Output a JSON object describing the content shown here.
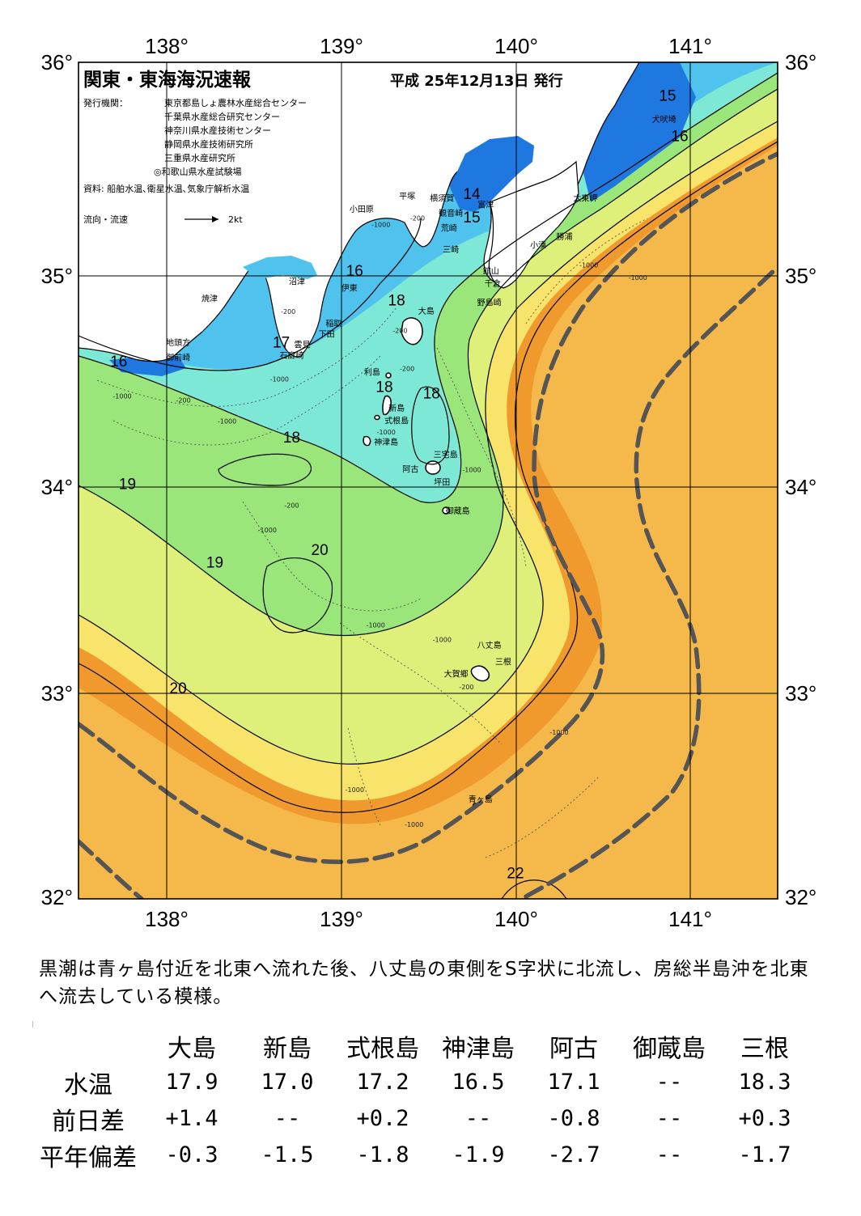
{
  "header": {
    "title": "関東・東海海況速報",
    "date": "平成 25年12月13日 発行",
    "issuer_label": "発行機関：",
    "issuers": [
      "東京都島しょ農林水産総合センター",
      "千葉県水産総合研究センター",
      "神奈川県水産技術センター",
      "静岡県水産技術研究所",
      "三重県水産研究所",
      "◎和歌山県水産試験場"
    ],
    "sources": "資料: 船舶水温､衛星水温､気象庁解析水温",
    "current_legend": "流向・流速",
    "current_scale": "2kt"
  },
  "axes": {
    "lon_labels": [
      "138°",
      "139°",
      "140°",
      "141°"
    ],
    "lat_labels": [
      "36°",
      "35°",
      "34°",
      "33°",
      "32°"
    ]
  },
  "colors": {
    "sea_cold": "#1e78e0",
    "sea_cool": "#4fc3ee",
    "sea_mid": "#7de8d6",
    "sea_green": "#9ae67a",
    "sea_light": "#dff07a",
    "sea_yellow": "#f8e46a",
    "sea_warm": "#f5b84a",
    "sea_hot": "#f09a2e",
    "kuroshio_axis": "#555555",
    "land": "#ffffff"
  },
  "places": [
    {
      "name": "犬吠埼",
      "lon": 140.85,
      "lat": 35.72
    },
    {
      "name": "太東岬",
      "lon": 140.4,
      "lat": 35.35
    },
    {
      "name": "勝浦",
      "lon": 140.28,
      "lat": 35.17
    },
    {
      "name": "小湊",
      "lon": 140.13,
      "lat": 35.13
    },
    {
      "name": "富津",
      "lon": 139.83,
      "lat": 35.32
    },
    {
      "name": "横須賀",
      "lon": 139.58,
      "lat": 35.35
    },
    {
      "name": "平塚",
      "lon": 139.38,
      "lat": 35.36
    },
    {
      "name": "観音崎",
      "lon": 139.63,
      "lat": 35.28
    },
    {
      "name": "荒崎",
      "lon": 139.62,
      "lat": 35.21
    },
    {
      "name": "三崎",
      "lon": 139.63,
      "lat": 35.11
    },
    {
      "name": "小田原",
      "lon": 139.12,
      "lat": 35.3
    },
    {
      "name": "館山",
      "lon": 139.86,
      "lat": 35.01
    },
    {
      "name": "千倉",
      "lon": 139.87,
      "lat": 34.95
    },
    {
      "name": "野島崎",
      "lon": 139.85,
      "lat": 34.86
    },
    {
      "name": "沼津",
      "lon": 138.75,
      "lat": 34.96
    },
    {
      "name": "伊東",
      "lon": 139.05,
      "lat": 34.93
    },
    {
      "name": "焼津",
      "lon": 138.25,
      "lat": 34.88
    },
    {
      "name": "稲取",
      "lon": 138.96,
      "lat": 34.76
    },
    {
      "name": "下田",
      "lon": 138.92,
      "lat": 34.71
    },
    {
      "name": "雲見",
      "lon": 138.78,
      "lat": 34.66
    },
    {
      "name": "石廊崎",
      "lon": 138.72,
      "lat": 34.61
    },
    {
      "name": "大島",
      "lon": 139.49,
      "lat": 34.82
    },
    {
      "name": "地頭方",
      "lon": 138.07,
      "lat": 34.67
    },
    {
      "name": "御前崎",
      "lon": 138.07,
      "lat": 34.6
    },
    {
      "name": "利島",
      "lon": 139.18,
      "lat": 34.53
    },
    {
      "name": "新島",
      "lon": 139.32,
      "lat": 34.36
    },
    {
      "name": "式根島",
      "lon": 139.32,
      "lat": 34.3
    },
    {
      "name": "神津島",
      "lon": 139.26,
      "lat": 34.2
    },
    {
      "name": "三宅島",
      "lon": 139.6,
      "lat": 34.14
    },
    {
      "name": "阿古",
      "lon": 139.4,
      "lat": 34.07
    },
    {
      "name": "坪田",
      "lon": 139.58,
      "lat": 34.01
    },
    {
      "name": "御蔵島",
      "lon": 139.67,
      "lat": 33.87
    },
    {
      "name": "八丈島",
      "lon": 139.85,
      "lat": 33.22
    },
    {
      "name": "三根",
      "lon": 139.93,
      "lat": 33.14
    },
    {
      "name": "大賀郷",
      "lon": 139.66,
      "lat": 33.08
    },
    {
      "name": "青ヶ島",
      "lon": 139.8,
      "lat": 32.47
    }
  ],
  "isotherm_labels": [
    {
      "text": "15",
      "lon": 140.87,
      "lat": 35.82
    },
    {
      "text": "16",
      "lon": 140.94,
      "lat": 35.63
    },
    {
      "text": "14",
      "lon": 139.75,
      "lat": 35.36
    },
    {
      "text": "15",
      "lon": 139.75,
      "lat": 35.25
    },
    {
      "text": "16",
      "lon": 139.08,
      "lat": 35.0
    },
    {
      "text": "18",
      "lon": 139.32,
      "lat": 34.86
    },
    {
      "text": "17",
      "lon": 138.66,
      "lat": 34.66
    },
    {
      "text": "16",
      "lon": 137.73,
      "lat": 34.57
    },
    {
      "text": "18",
      "lon": 139.25,
      "lat": 34.45
    },
    {
      "text": "18",
      "lon": 139.52,
      "lat": 34.42
    },
    {
      "text": "18",
      "lon": 138.72,
      "lat": 34.21
    },
    {
      "text": "19",
      "lon": 137.78,
      "lat": 33.99
    },
    {
      "text": "20",
      "lon": 138.88,
      "lat": 33.67
    },
    {
      "text": "19",
      "lon": 138.28,
      "lat": 33.61
    },
    {
      "text": "20",
      "lon": 138.07,
      "lat": 33.0
    },
    {
      "text": "22",
      "lon": 140.0,
      "lat": 32.1
    }
  ],
  "depth_labels": [
    {
      "text": "-1000",
      "lon": 139.23,
      "lat": 35.23
    },
    {
      "text": "-200",
      "lon": 139.44,
      "lat": 35.26
    },
    {
      "text": "-1000",
      "lon": 140.42,
      "lat": 35.04
    },
    {
      "text": "-1000",
      "lon": 140.7,
      "lat": 34.98
    },
    {
      "text": "-200",
      "lon": 138.7,
      "lat": 34.82
    },
    {
      "text": "-200",
      "lon": 139.34,
      "lat": 34.73
    },
    {
      "text": "-1000",
      "lon": 138.65,
      "lat": 34.5
    },
    {
      "text": "-200",
      "lon": 139.38,
      "lat": 34.55
    },
    {
      "text": "-200",
      "lon": 138.1,
      "lat": 34.4
    },
    {
      "text": "-1000",
      "lon": 137.75,
      "lat": 34.42
    },
    {
      "text": "-1000",
      "lon": 138.35,
      "lat": 34.3
    },
    {
      "text": "-1000",
      "lon": 139.26,
      "lat": 34.25
    },
    {
      "text": "-1000",
      "lon": 139.75,
      "lat": 34.07
    },
    {
      "text": "-200",
      "lon": 138.72,
      "lat": 33.9
    },
    {
      "text": "-1000",
      "lon": 138.58,
      "lat": 33.78
    },
    {
      "text": "-1000",
      "lon": 139.2,
      "lat": 33.32
    },
    {
      "text": "-1000",
      "lon": 139.58,
      "lat": 33.25
    },
    {
      "text": "-200",
      "lon": 139.72,
      "lat": 33.02
    },
    {
      "text": "-1000",
      "lon": 140.25,
      "lat": 32.8
    },
    {
      "text": "-1000",
      "lon": 139.08,
      "lat": 32.52
    },
    {
      "text": "-1000",
      "lon": 139.42,
      "lat": 32.35
    }
  ],
  "summary": "黒潮は青ヶ島付近を北東へ流れた後、八丈島の東側をS字状に北流し、房総半島沖を北東へ流去している模様。",
  "table": {
    "headers": [
      "大島",
      "新島",
      "式根島",
      "神津島",
      "阿古",
      "御蔵島",
      "三根"
    ],
    "rows": [
      {
        "label": "水温",
        "values": [
          "17.9",
          "17.0",
          "17.2",
          "16.5",
          "17.1",
          "--",
          "18.3"
        ]
      },
      {
        "label": "前日差",
        "values": [
          "+1.4",
          "--",
          "+0.2",
          "--",
          "-0.8",
          "--",
          "+0.3"
        ]
      },
      {
        "label": "平年偏差",
        "values": [
          "-0.3",
          "-1.5",
          "-1.8",
          "-1.9",
          "-2.7",
          "--",
          "-1.7"
        ]
      }
    ]
  }
}
